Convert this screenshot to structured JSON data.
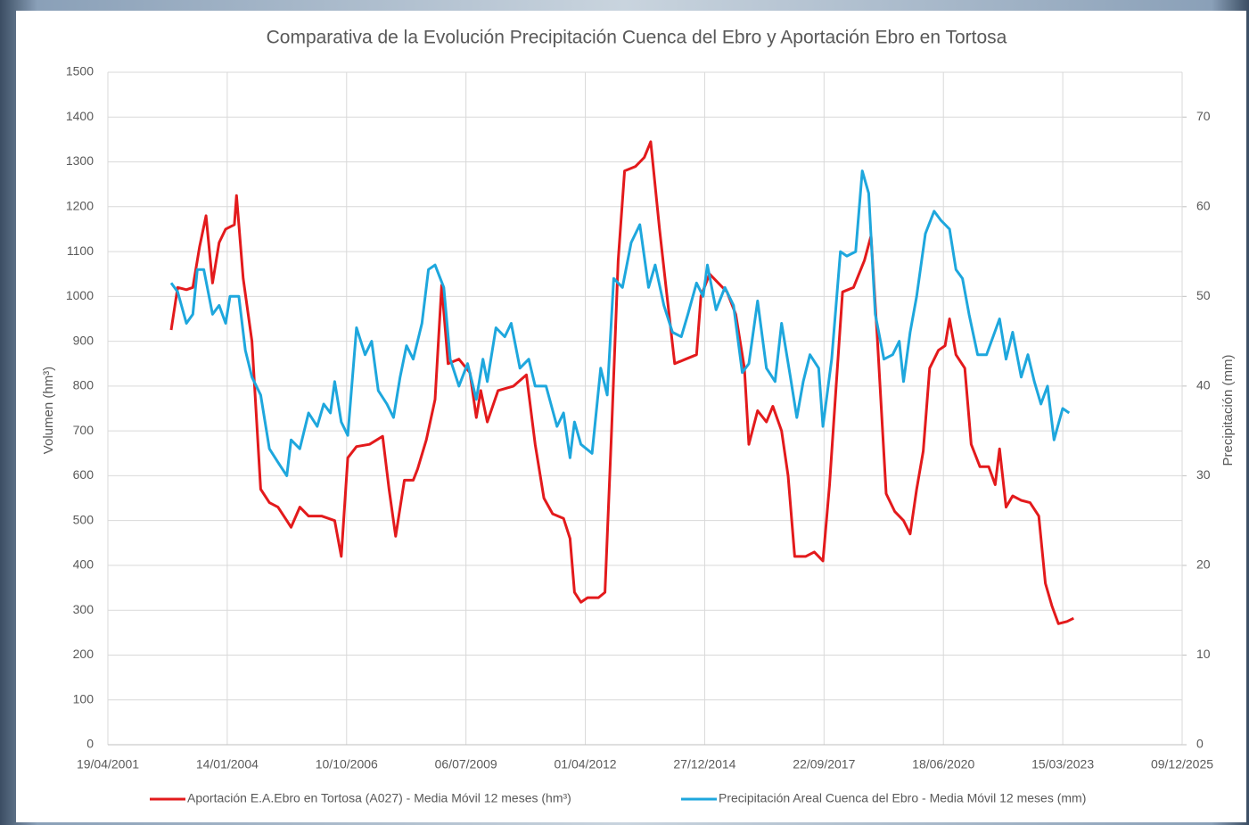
{
  "chart_data": {
    "type": "line",
    "title": "Comparativa de la Evolución Precipitación Cuenca del Ebro y Aportación Ebro en Tortosa",
    "y_label": "Volumen (hm³)",
    "y2_label": "Precipitación (mm)",
    "xlim": [
      "2001-04-19",
      "2025-12-09"
    ],
    "xticks": [
      {
        "value": "2001-04-19",
        "label": "19/04/2001"
      },
      {
        "value": "2004-01-14",
        "label": "14/01/2004"
      },
      {
        "value": "2006-10-10",
        "label": "10/10/2006"
      },
      {
        "value": "2009-07-06",
        "label": "06/07/2009"
      },
      {
        "value": "2012-04-01",
        "label": "01/04/2012"
      },
      {
        "value": "2014-12-27",
        "label": "27/12/2014"
      },
      {
        "value": "2017-09-22",
        "label": "22/09/2017"
      },
      {
        "value": "2020-06-18",
        "label": "18/06/2020"
      },
      {
        "value": "2023-03-15",
        "label": "15/03/2023"
      },
      {
        "value": "2025-12-09",
        "label": "09/12/2025"
      }
    ],
    "ylim": [
      0,
      1500
    ],
    "yticks": [
      0,
      100,
      200,
      300,
      400,
      500,
      600,
      700,
      800,
      900,
      1000,
      1100,
      1200,
      1300,
      1400,
      1500
    ],
    "y2lim": [
      0,
      75
    ],
    "y2ticks": [
      0,
      10,
      20,
      30,
      40,
      50,
      60,
      70
    ],
    "grid": true,
    "legend": "bottom",
    "series": [
      {
        "name": "Aportación E.A.Ebro en Tortosa (A027) - Media Móvil 12 meses (hm³)",
        "color": "#e31a1c",
        "axis": "y",
        "x": [
          "2002-10-01",
          "2002-11-25",
          "2003-02-06",
          "2003-04-01",
          "2003-05-27",
          "2003-07-20",
          "2003-09-13",
          "2003-11-07",
          "2004-01-01",
          "2004-03-14",
          "2004-04-01",
          "2004-05-27",
          "2004-08-08",
          "2004-10-20",
          "2005-01-01",
          "2005-03-14",
          "2005-05-27",
          "2005-07-02",
          "2005-09-13",
          "2005-11-25",
          "2006-03-14",
          "2006-07-02",
          "2006-08-26",
          "2006-10-20",
          "2007-01-01",
          "2007-04-20",
          "2007-08-08",
          "2007-10-01",
          "2007-11-25",
          "2008-02-06",
          "2008-04-20",
          "2008-05-27",
          "2008-08-08",
          "2008-10-20",
          "2008-12-14",
          "2009-02-06",
          "2009-05-08",
          "2009-08-08",
          "2009-10-01",
          "2009-11-07",
          "2010-01-01",
          "2010-04-01",
          "2010-08-08",
          "2010-11-25",
          "2011-02-06",
          "2011-04-20",
          "2011-07-02",
          "2011-10-01",
          "2011-11-25",
          "2012-01-01",
          "2012-02-24",
          "2012-04-20",
          "2012-07-20",
          "2012-09-13",
          "2012-11-07",
          "2013-01-01",
          "2013-02-24",
          "2013-05-27",
          "2013-08-08",
          "2013-10-01",
          "2013-12-14",
          "2014-02-06",
          "2014-04-20",
          "2014-07-20",
          "2014-10-20",
          "2014-11-25",
          "2015-02-06",
          "2015-04-20",
          "2015-07-02",
          "2015-09-13",
          "2015-11-25",
          "2016-01-01",
          "2016-03-14",
          "2016-05-27",
          "2016-07-20",
          "2016-10-01",
          "2016-11-25",
          "2017-01-19",
          "2017-04-20",
          "2017-07-02",
          "2017-09-13",
          "2017-11-07",
          "2018-01-01",
          "2018-02-24",
          "2018-05-27",
          "2018-08-26",
          "2018-10-20",
          "2018-12-14",
          "2019-02-24",
          "2019-05-08",
          "2019-07-20",
          "2019-09-13",
          "2019-11-07",
          "2020-01-01",
          "2020-02-24",
          "2020-05-08",
          "2020-07-02",
          "2020-08-08",
          "2020-10-01",
          "2020-12-14",
          "2021-02-06",
          "2021-04-20",
          "2021-07-02",
          "2021-08-26",
          "2021-10-01",
          "2021-11-25",
          "2022-01-19",
          "2022-04-01",
          "2022-06-14",
          "2022-08-26",
          "2022-10-20",
          "2022-12-14",
          "2023-02-06",
          "2023-04-20",
          "2023-06-14"
        ],
        "values": [
          925,
          1020,
          1015,
          1020,
          1110,
          1180,
          1030,
          1120,
          1150,
          1160,
          1225,
          1040,
          900,
          570,
          540,
          530,
          500,
          485,
          530,
          510,
          510,
          500,
          420,
          640,
          665,
          670,
          688,
          570,
          465,
          590,
          590,
          615,
          680,
          770,
          1025,
          850,
          860,
          830,
          730,
          790,
          720,
          790,
          800,
          825,
          670,
          550,
          515,
          505,
          460,
          340,
          318,
          328,
          328,
          340,
          700,
          1080,
          1280,
          1290,
          1310,
          1345,
          1150,
          1020,
          850,
          860,
          870,
          1000,
          1050,
          1030,
          1010,
          960,
          840,
          670,
          745,
          720,
          755,
          700,
          600,
          420,
          420,
          430,
          410,
          580,
          800,
          1010,
          1020,
          1080,
          1135,
          900,
          560,
          520,
          500,
          470,
          570,
          655,
          840,
          880,
          890,
          950,
          870,
          840,
          670,
          620,
          620,
          580,
          660,
          530,
          555,
          545,
          540,
          510,
          360,
          310,
          270,
          275,
          282
        ]
      },
      {
        "name": "Precipitación Areal Cuenca del Ebro - Media Móvil 12 meses  (mm)",
        "color": "#1ea7dd",
        "axis": "y2",
        "x": [
          "2002-10-01",
          "2002-11-25",
          "2003-02-06",
          "2003-04-01",
          "2003-05-08",
          "2003-07-02",
          "2003-09-13",
          "2003-11-07",
          "2004-01-01",
          "2004-02-06",
          "2004-04-20",
          "2004-06-14",
          "2004-08-08",
          "2004-10-20",
          "2005-01-01",
          "2005-03-14",
          "2005-05-27",
          "2005-07-02",
          "2005-09-13",
          "2005-11-25",
          "2006-02-06",
          "2006-04-01",
          "2006-05-27",
          "2006-07-02",
          "2006-08-26",
          "2006-10-20",
          "2007-01-01",
          "2007-03-14",
          "2007-05-08",
          "2007-07-02",
          "2007-09-13",
          "2007-11-07",
          "2008-01-01",
          "2008-02-24",
          "2008-04-20",
          "2008-07-02",
          "2008-08-26",
          "2008-10-20",
          "2009-01-01",
          "2009-02-24",
          "2009-05-08",
          "2009-07-20",
          "2009-10-01",
          "2009-11-25",
          "2010-01-01",
          "2010-03-14",
          "2010-05-27",
          "2010-07-20",
          "2010-10-01",
          "2010-12-14",
          "2011-02-06",
          "2011-05-08",
          "2011-08-08",
          "2011-10-01",
          "2011-11-25",
          "2012-01-01",
          "2012-02-24",
          "2012-05-27",
          "2012-08-08",
          "2012-10-01",
          "2012-11-25",
          "2013-02-06",
          "2013-04-20",
          "2013-07-02",
          "2013-09-13",
          "2013-11-07",
          "2014-01-19",
          "2014-04-01",
          "2014-06-14",
          "2014-08-08",
          "2014-10-20",
          "2014-12-14",
          "2015-01-19",
          "2015-04-01",
          "2015-06-14",
          "2015-08-26",
          "2015-11-07",
          "2016-01-01",
          "2016-03-14",
          "2016-05-27",
          "2016-08-08",
          "2016-10-01",
          "2016-12-14",
          "2017-02-06",
          "2017-04-01",
          "2017-05-27",
          "2017-08-08",
          "2017-09-13",
          "2017-11-25",
          "2018-02-06",
          "2018-04-01",
          "2018-06-14",
          "2018-08-08",
          "2018-10-01",
          "2018-11-25",
          "2019-02-06",
          "2019-04-20",
          "2019-06-14",
          "2019-07-20",
          "2019-09-13",
          "2019-11-07",
          "2020-01-19",
          "2020-04-01",
          "2020-05-27",
          "2020-08-08",
          "2020-10-01",
          "2020-11-25",
          "2021-01-19",
          "2021-04-01",
          "2021-06-14",
          "2021-08-08",
          "2021-10-01",
          "2021-11-25",
          "2022-01-19",
          "2022-04-01",
          "2022-05-27",
          "2022-07-20",
          "2022-09-13",
          "2022-11-07",
          "2023-01-01",
          "2023-03-14",
          "2023-05-08"
        ],
        "values": [
          51.5,
          50.5,
          47,
          48,
          53,
          53,
          48,
          49,
          47,
          50,
          50,
          44,
          41,
          39,
          33,
          31.5,
          30,
          34,
          33,
          37,
          35.5,
          38,
          37,
          40.5,
          36,
          34.5,
          46.5,
          43.5,
          45,
          39.5,
          38,
          36.5,
          41,
          44.5,
          43,
          47,
          53,
          53.5,
          51,
          43,
          40,
          42.5,
          38.5,
          43,
          40.5,
          46.5,
          45.5,
          47,
          42,
          43,
          40,
          40,
          35.5,
          37,
          32,
          36,
          33.5,
          32.5,
          42,
          39,
          52,
          51,
          56,
          58,
          51,
          53.5,
          49,
          46,
          45.5,
          48,
          51.5,
          50,
          53.5,
          48.5,
          51,
          49,
          41.5,
          42.5,
          49.5,
          42,
          40.5,
          47,
          41,
          36.5,
          40.5,
          43.5,
          42,
          35.5,
          43,
          55,
          54.5,
          55,
          64,
          61.5,
          48,
          43,
          43.5,
          45,
          40.5,
          46,
          50,
          57,
          59.5,
          58.5,
          57.5,
          53,
          52,
          48,
          43.5,
          43.5,
          45.5,
          47.5,
          43,
          46,
          41,
          43.5,
          40.5,
          38,
          40,
          34,
          37.5,
          37
        ]
      }
    ]
  }
}
